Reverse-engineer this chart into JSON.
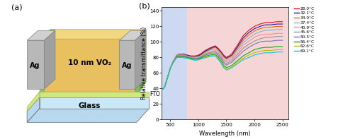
{
  "title_left": "(a)",
  "title_right": "(b)",
  "xlabel": "Wavelength (nm)",
  "ylabel": "Relative transmittance (%)",
  "xlim": [
    350,
    2600
  ],
  "ylim": [
    0,
    145
  ],
  "yticks": [
    0,
    20,
    40,
    60,
    80,
    100,
    120,
    140
  ],
  "xticks": [
    500,
    1000,
    1500,
    2000,
    2500
  ],
  "blue_bg": [
    350,
    800
  ],
  "pink_bg": [
    800,
    2600
  ],
  "blue_bg_color": "#ccd9f0",
  "pink_bg_color": "#f5d5d5",
  "temperatures": [
    "28.0°C",
    "32.1°C",
    "34.0°C",
    "37.4°C",
    "40.9°C",
    "45.6°C",
    "50.5°C",
    "56.4°C",
    "62.6°C",
    "69.1°C"
  ],
  "colors": [
    "#e8000d",
    "#1a0dab",
    "#e86400",
    "#7ab4d4",
    "#ff8888",
    "#909090",
    "#7070c0",
    "#00aa00",
    "#c8b400",
    "#00cccc"
  ],
  "wavelengths": [
    350,
    400,
    450,
    500,
    550,
    600,
    620,
    650,
    680,
    700,
    720,
    750,
    780,
    800,
    850,
    900,
    950,
    1000,
    1050,
    1100,
    1200,
    1300,
    1350,
    1400,
    1450,
    1500,
    1550,
    1600,
    1700,
    1800,
    1900,
    2000,
    2100,
    2200,
    2300,
    2400,
    2500
  ],
  "curves": {
    "28.0": [
      38,
      42,
      54,
      66,
      74,
      81,
      83,
      84,
      84,
      84,
      84,
      84,
      83,
      83,
      82,
      82,
      82,
      83,
      85,
      88,
      92,
      95,
      92,
      88,
      83,
      80,
      82,
      85,
      96,
      108,
      115,
      120,
      123,
      125,
      125,
      126,
      126
    ],
    "32.1": [
      38,
      42,
      54,
      66,
      74,
      81,
      83,
      84,
      84,
      84,
      84,
      84,
      83,
      83,
      82,
      81,
      81,
      82,
      84,
      87,
      91,
      94,
      91,
      87,
      82,
      79,
      81,
      83,
      94,
      105,
      112,
      117,
      120,
      122,
      122,
      123,
      123
    ],
    "34.0": [
      38,
      42,
      54,
      66,
      74,
      81,
      83,
      84,
      84,
      84,
      83,
      83,
      82,
      82,
      81,
      81,
      81,
      81,
      83,
      86,
      90,
      93,
      90,
      86,
      81,
      78,
      80,
      82,
      92,
      102,
      109,
      114,
      117,
      119,
      119,
      120,
      120
    ],
    "37.4": [
      38,
      42,
      54,
      66,
      74,
      81,
      83,
      83,
      83,
      83,
      83,
      83,
      82,
      82,
      81,
      80,
      80,
      81,
      82,
      85,
      89,
      91,
      88,
      84,
      79,
      76,
      78,
      80,
      90,
      99,
      105,
      110,
      113,
      115,
      115,
      116,
      116
    ],
    "40.9": [
      38,
      42,
      54,
      66,
      74,
      81,
      83,
      83,
      83,
      83,
      83,
      83,
      82,
      81,
      80,
      80,
      79,
      80,
      81,
      84,
      87,
      89,
      86,
      82,
      77,
      74,
      76,
      78,
      87,
      96,
      101,
      106,
      109,
      110,
      110,
      111,
      111
    ],
    "45.6": [
      38,
      42,
      54,
      66,
      74,
      80,
      82,
      82,
      82,
      82,
      82,
      82,
      81,
      81,
      80,
      79,
      79,
      79,
      81,
      83,
      86,
      88,
      85,
      81,
      75,
      72,
      74,
      76,
      84,
      92,
      97,
      101,
      104,
      106,
      106,
      107,
      107
    ],
    "50.5": [
      38,
      42,
      54,
      66,
      74,
      80,
      82,
      82,
      82,
      82,
      82,
      81,
      81,
      80,
      79,
      79,
      78,
      79,
      80,
      82,
      85,
      86,
      83,
      79,
      73,
      70,
      72,
      74,
      81,
      88,
      93,
      97,
      100,
      101,
      101,
      102,
      102
    ],
    "56.4": [
      38,
      42,
      54,
      66,
      73,
      79,
      81,
      81,
      81,
      81,
      81,
      81,
      80,
      80,
      79,
      78,
      77,
      78,
      79,
      81,
      83,
      84,
      81,
      76,
      70,
      67,
      68,
      70,
      76,
      82,
      86,
      90,
      92,
      93,
      93,
      94,
      94
    ],
    "62.6": [
      38,
      42,
      54,
      66,
      73,
      79,
      80,
      80,
      80,
      80,
      80,
      80,
      79,
      79,
      78,
      77,
      77,
      77,
      78,
      80,
      82,
      83,
      79,
      74,
      68,
      65,
      66,
      68,
      74,
      79,
      83,
      86,
      88,
      89,
      89,
      90,
      90
    ],
    "69.1": [
      38,
      42,
      54,
      66,
      73,
      78,
      80,
      80,
      80,
      80,
      80,
      79,
      79,
      79,
      78,
      77,
      76,
      77,
      78,
      79,
      81,
      82,
      78,
      73,
      67,
      64,
      65,
      67,
      72,
      77,
      80,
      83,
      85,
      86,
      86,
      87,
      87
    ]
  },
  "schematic": {
    "glass_front_color": "#b8d8f0",
    "glass_top_color": "#c8e8f8",
    "fto_color": "#d0e880",
    "vo2_front_color": "#e8c060",
    "vo2_top_color": "#f0d880",
    "vo2_right_color": "#c8a040",
    "ag_front_color": "#b8b8b8",
    "ag_top_color": "#d0d0d0",
    "ag_right_color": "#a0a0a0",
    "green_border_color": "#90c870"
  }
}
